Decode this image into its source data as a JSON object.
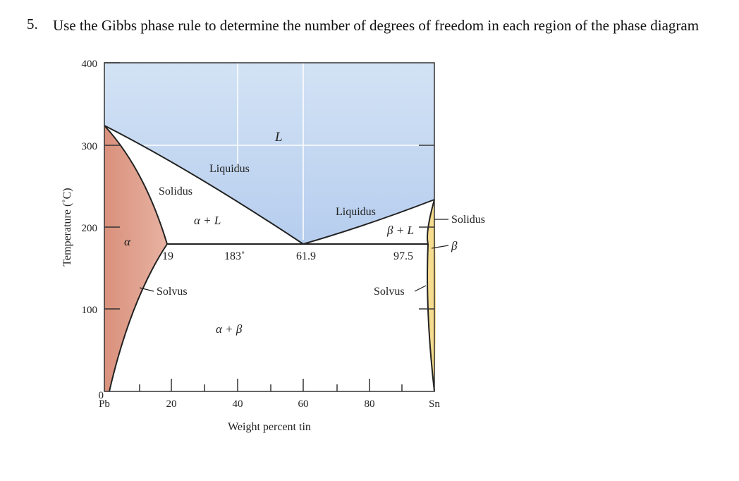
{
  "question": {
    "number": "5.",
    "text": "Use the Gibbs phase rule to determine the number of degrees of freedom in each region of the phase diagram"
  },
  "diagram": {
    "y_axis_title": "Temperature (˚C)",
    "x_axis_title": "Weight percent tin",
    "y_ticks": [
      "0",
      "100",
      "200",
      "300",
      "400"
    ],
    "x_ticks": [
      "Pb",
      "20",
      "40",
      "60",
      "80",
      "Sn"
    ],
    "labels": {
      "L": "L",
      "liquidus_left": "Liquidus",
      "liquidus_right": "Liquidus",
      "solidus_left": "Solidus",
      "solidus_right": "Solidus",
      "alpha_plus_L": "α + L",
      "beta_plus_L": "β + L",
      "alpha": "α",
      "beta": "β",
      "alpha_plus_beta": "α + β",
      "solvus_left": "Solvus",
      "solvus_right": "Solvus",
      "eutectic_temp": "183˚",
      "comp_19": "19",
      "comp_61_9": "61.9",
      "comp_97_5": "97.5"
    },
    "colors": {
      "liquid": "#c5d9f1",
      "alpha": "#e4a493",
      "beta": "#f6dc8e",
      "line": "#222222"
    }
  }
}
